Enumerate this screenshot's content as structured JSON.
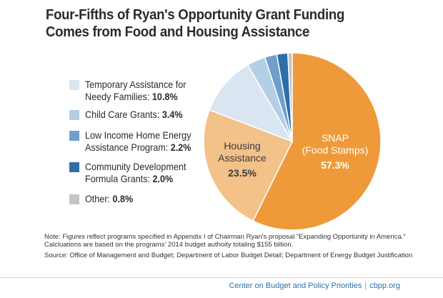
{
  "title_line1": "Four-Fifths of Ryan's Opportunity Grant Funding",
  "title_line2": "Comes from Food and Housing Assistance",
  "chart_data": {
    "type": "pie",
    "slices": [
      {
        "label": "SNAP (Food Stamps)",
        "value": 57.3,
        "color": "#ee9a3a"
      },
      {
        "label": "Housing Assistance",
        "value": 23.5,
        "color": "#f3c289"
      },
      {
        "label": "Temporary Assistance for Needy Families",
        "value": 10.8,
        "color": "#d9e6f2"
      },
      {
        "label": "Child Care Grants",
        "value": 3.4,
        "color": "#b3cfe6"
      },
      {
        "label": "Low Income Home Energy Assistance Program",
        "value": 2.2,
        "color": "#6f9fcd"
      },
      {
        "label": "Community Development Formula Grants",
        "value": 2.0,
        "color": "#2f6ea8"
      },
      {
        "label": "Other",
        "value": 0.8,
        "color": "#c4c4c4"
      }
    ]
  },
  "pie_labels": {
    "snap_line1": "SNAP",
    "snap_line2": "(Food Stamps)",
    "snap_value": "57.3%",
    "housing_line1": "Housing",
    "housing_line2": "Assistance",
    "housing_value": "23.5%"
  },
  "legend": [
    {
      "line1": "Temporary Assistance for",
      "line2_text": "Needy Families: ",
      "value": "10.8%",
      "color": "#d9e6f2"
    },
    {
      "line1": "",
      "line2_text": "Child Care Grants: ",
      "value": "3.4%",
      "color": "#b3cfe6"
    },
    {
      "line1": "Low Income Home Energy",
      "line2_text": "Assistance Program: ",
      "value": "2.2%",
      "color": "#6f9fcd"
    },
    {
      "line1": "Community Development",
      "line2_text": "Formula Grants: ",
      "value": "2.0%",
      "color": "#2f6ea8"
    },
    {
      "line1": "",
      "line2_text": "Other: ",
      "value": "0.8%",
      "color": "#c4c4c4"
    }
  ],
  "note_text": "Note: Figures reflect programs specified in Appendix I of Chairman Ryan's proposal “Expanding Opportunity in America.”  Calcluations are based on the programs' 2014 budget authoity totaling $155 billion.",
  "source_text": "Source: Office of Management and Budget; Department of Labor Budget Detail; Department of Energy Budget Justification",
  "footer_org": "Center on Budget and Policy Priorities",
  "footer_sep": "|",
  "footer_url": "cbpp.org"
}
